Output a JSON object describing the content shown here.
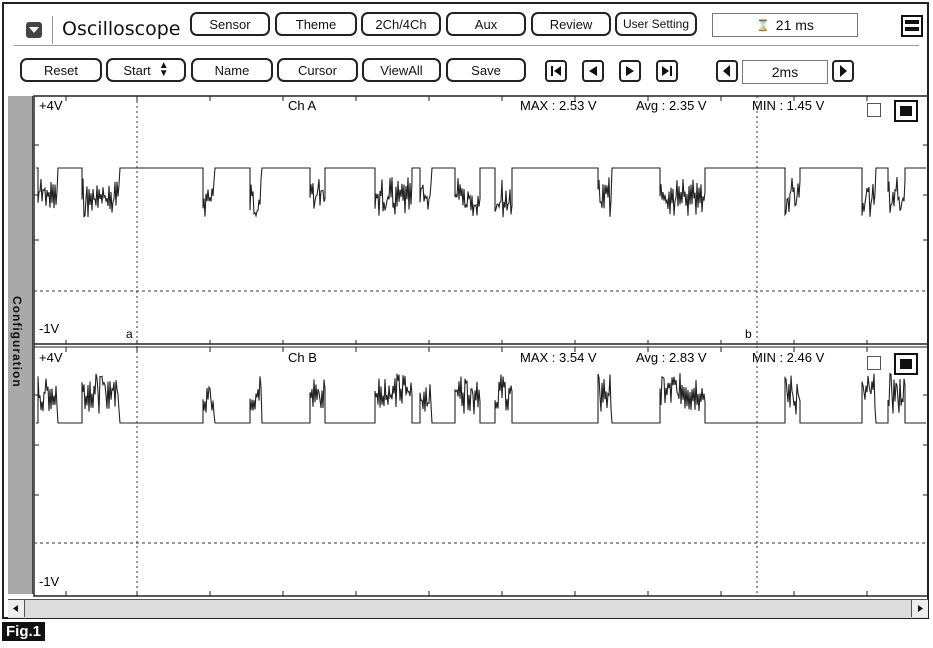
{
  "app": {
    "title": "Oscilloscope"
  },
  "toolbar": {
    "row1": [
      "Sensor",
      "Theme",
      "2Ch/4Ch",
      "Aux",
      "Review",
      "User Setting"
    ],
    "row2": [
      "Reset",
      "Start",
      "Name",
      "Cursor",
      "ViewAll",
      "Save"
    ],
    "readout": "21 ms",
    "time_div": "2ms"
  },
  "sidebar": {
    "label": "Configuration"
  },
  "channels": [
    {
      "name": "Ch A",
      "top_label": "+4V",
      "bottom_label": "-1V",
      "max": "MAX : 2.53 V",
      "avg": "Avg : 2.35 V",
      "min": "MIN : 1.45 V",
      "cursor_a": "a",
      "cursor_b": "b"
    },
    {
      "name": "Ch B",
      "top_label": "+4V",
      "bottom_label": "-1V",
      "max": "MAX : 3.54 V",
      "avg": "Avg : 2.83 V",
      "min": "MIN : 2.46 V"
    }
  ],
  "figure": {
    "label": "Fig.1"
  },
  "icons": {
    "menu": "menu-icon",
    "window": "window-icon",
    "hourglass": "hourglass-icon"
  }
}
